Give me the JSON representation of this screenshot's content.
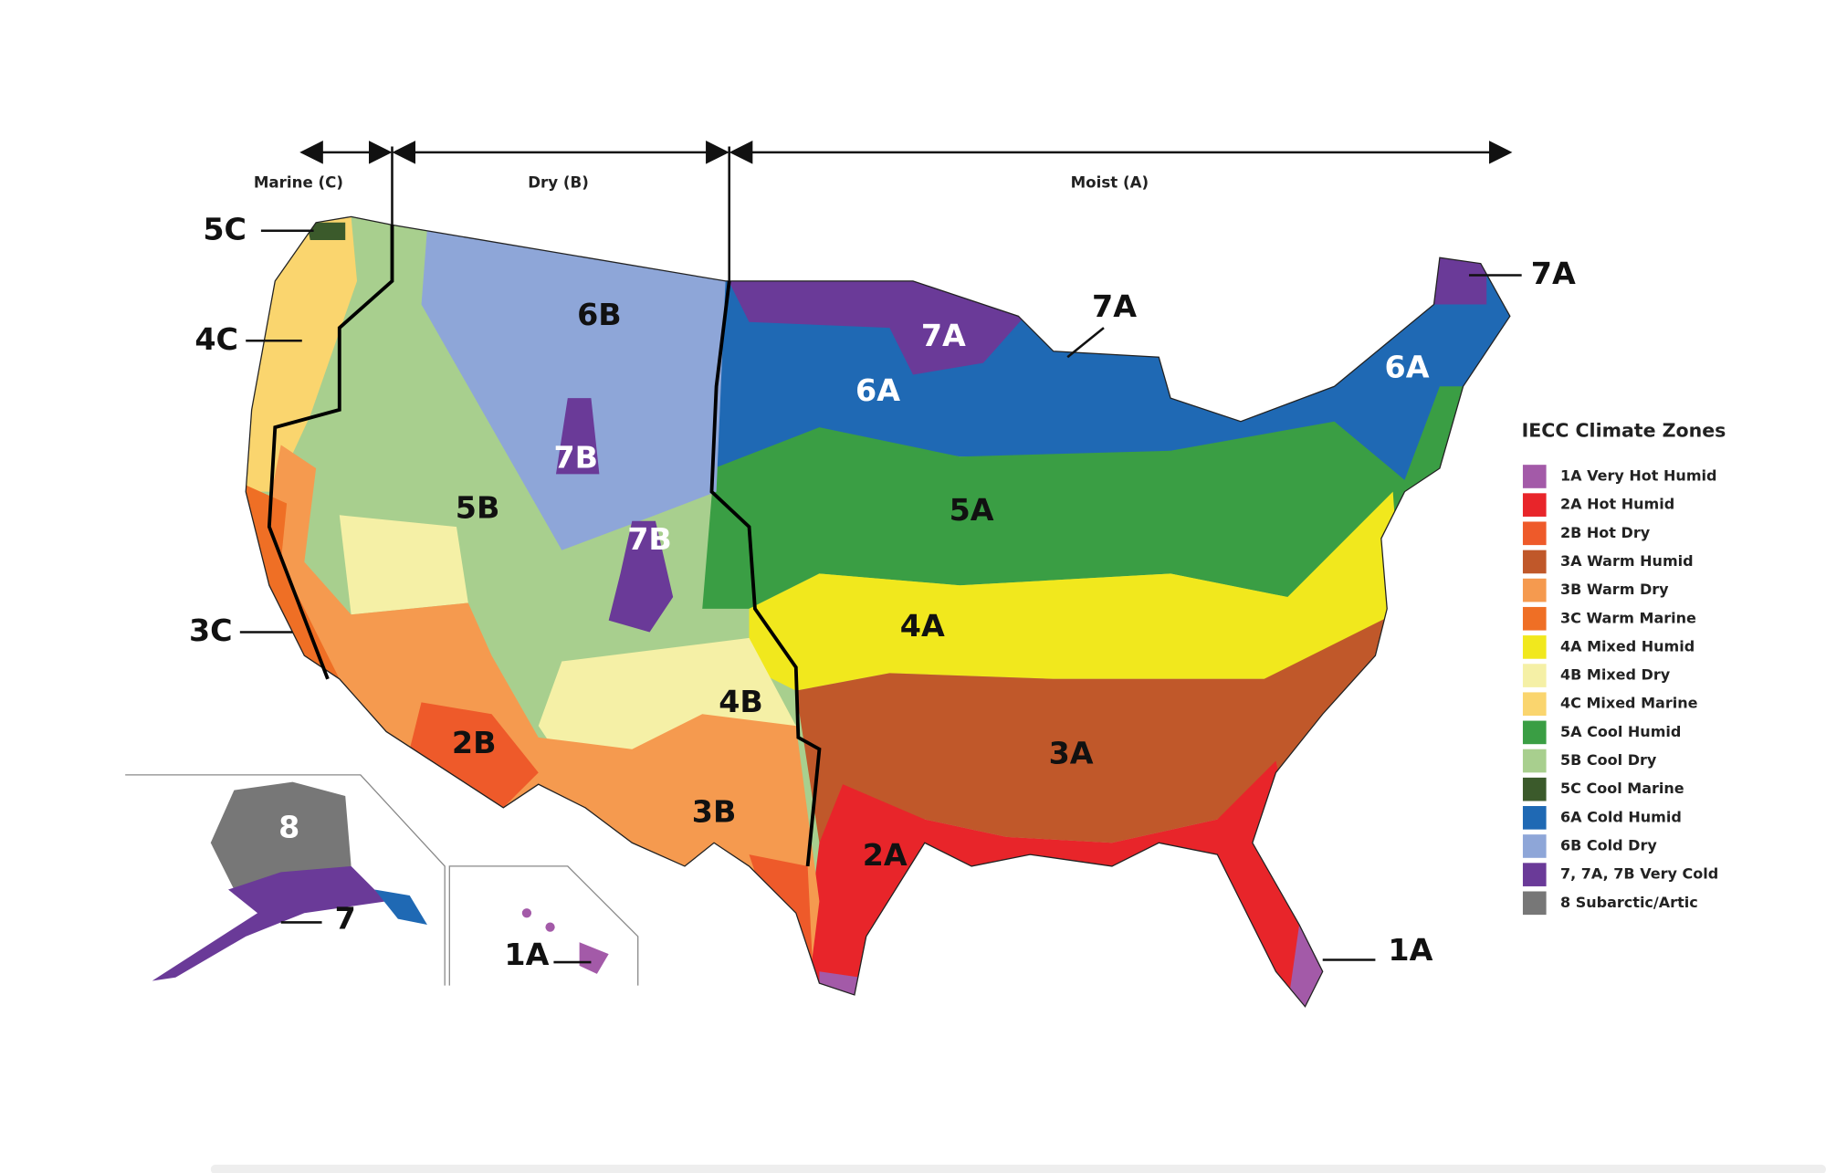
{
  "header": {
    "regions": [
      "Marine (C)",
      "Dry (B)",
      "Moist (A)"
    ]
  },
  "map_labels": [
    "5C",
    "4C",
    "3C",
    "6B",
    "5B",
    "7B",
    "7B",
    "2B",
    "4B",
    "3B",
    "7A",
    "7A",
    "7A",
    "6A",
    "6A",
    "5A",
    "4A",
    "3A",
    "2A",
    "1A",
    "8",
    "7",
    "1A"
  ],
  "legend": {
    "title": "IECC Climate Zones",
    "items": [
      {
        "label": "1A Very Hot Humid",
        "color": "#a35aa8"
      },
      {
        "label": "2A Hot Humid",
        "color": "#e8252a"
      },
      {
        "label": "2B Hot Dry",
        "color": "#ee5a2a"
      },
      {
        "label": "3A Warm Humid",
        "color": "#c0582a"
      },
      {
        "label": "3B Warm Dry",
        "color": "#f59a4f"
      },
      {
        "label": "3C Warm Marine",
        "color": "#ef6f25"
      },
      {
        "label": "4A Mixed Humid",
        "color": "#f1e81d"
      },
      {
        "label": "4B Mixed Dry",
        "color": "#f5f0a6"
      },
      {
        "label": "4C Mixed Marine",
        "color": "#fad56e"
      },
      {
        "label": "5A Cool Humid",
        "color": "#3a9e44"
      },
      {
        "label": "5B Cool Dry",
        "color": "#a8cf8e"
      },
      {
        "label": "5C Cool Marine",
        "color": "#3b5a2b"
      },
      {
        "label": "6A Cold Humid",
        "color": "#1f69b4"
      },
      {
        "label": "6B Cold Dry",
        "color": "#8ea6d8"
      },
      {
        "label": "7, 7A, 7B  Very Cold",
        "color": "#6a3a98"
      },
      {
        "label": "8 Subarctic/Artic",
        "color": "#777777"
      }
    ]
  }
}
